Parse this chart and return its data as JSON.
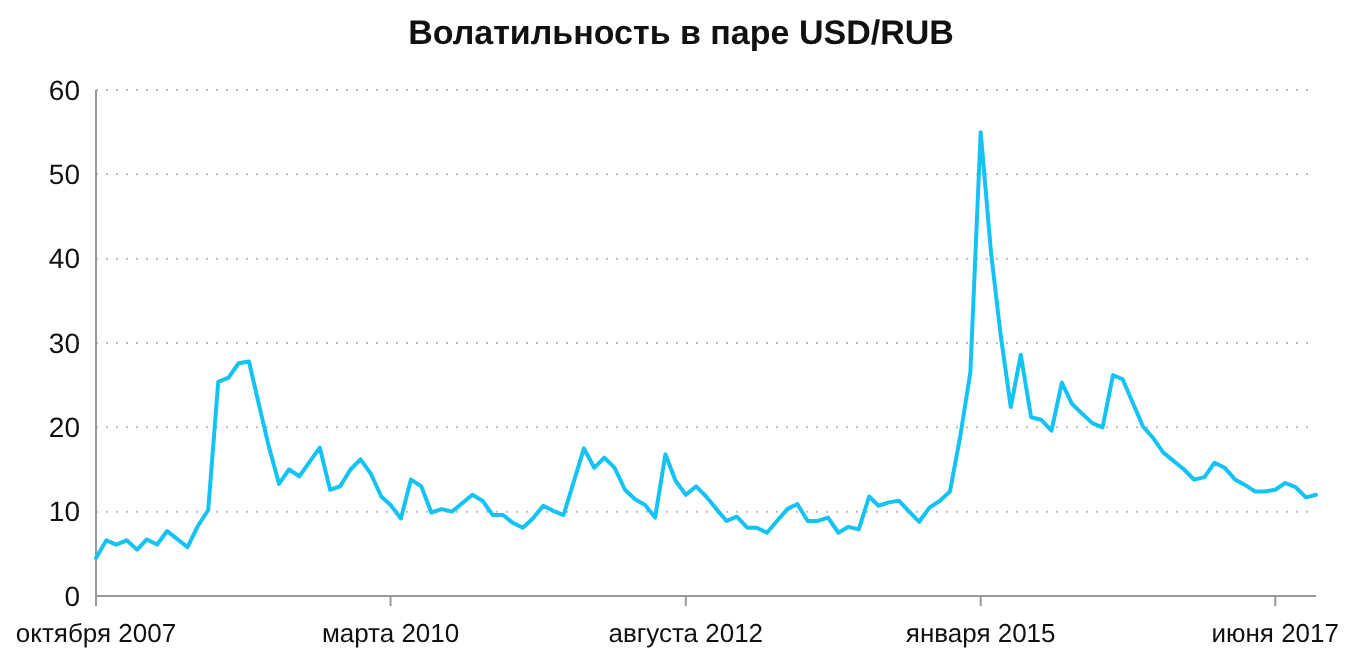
{
  "chart_data": {
    "type": "line",
    "title": "Волатильность в паре USD/RUB",
    "x": [
      "2007-10",
      "2007-11",
      "2007-12",
      "2008-01",
      "2008-02",
      "2008-03",
      "2008-04",
      "2008-05",
      "2008-07",
      "2008-08",
      "2008-09",
      "2008-10",
      "2008-11",
      "2008-12",
      "2009-01",
      "2009-02",
      "2009-03",
      "2009-04",
      "2009-05",
      "2009-06",
      "2009-08",
      "2009-09",
      "2009-10",
      "2009-11",
      "2009-12",
      "2010-01",
      "2010-02",
      "2010-03",
      "2010-04",
      "2010-05",
      "2010-06",
      "2010-07",
      "2010-08",
      "2010-09",
      "2010-11",
      "2010-12",
      "2011-01",
      "2011-02",
      "2011-03",
      "2011-04",
      "2011-05",
      "2011-06",
      "2011-07",
      "2011-08",
      "2011-10",
      "2011-11",
      "2011-12",
      "2012-01",
      "2012-02",
      "2012-03",
      "2012-04",
      "2012-05",
      "2012-06",
      "2012-07",
      "2012-08",
      "2012-09",
      "2012-10",
      "2012-11",
      "2012-12",
      "2013-01",
      "2013-02",
      "2013-03",
      "2013-04",
      "2013-05",
      "2013-06",
      "2013-07",
      "2013-08",
      "2013-09",
      "2013-10",
      "2013-11",
      "2013-12",
      "2014-01",
      "2014-02",
      "2014-03",
      "2014-04",
      "2014-05",
      "2014-06",
      "2014-07",
      "2014-08",
      "2014-09",
      "2014-10",
      "2014-11",
      "2014-12",
      "2015-01",
      "2015-02",
      "2015-03",
      "2015-04",
      "2015-05",
      "2015-06",
      "2015-07",
      "2015-08",
      "2015-09",
      "2015-10",
      "2015-11",
      "2015-12",
      "2016-01",
      "2016-02",
      "2016-03",
      "2016-05",
      "2016-06",
      "2016-07",
      "2016-09",
      "2016-10",
      "2016-11",
      "2016-12",
      "2017-01",
      "2017-02",
      "2017-03",
      "2017-04",
      "2017-05",
      "2017-06",
      "2017-07",
      "2017-08",
      "2017-09",
      "2017-10"
    ],
    "series": [
      {
        "color": "#12c3f4",
        "values": [
          4.5,
          6.6,
          6.1,
          6.6,
          5.5,
          6.7,
          6.1,
          7.7,
          5.8,
          8.3,
          10.2,
          25.4,
          25.9,
          27.6,
          27.8,
          22.5,
          17.8,
          13.3,
          15,
          14.2,
          17.6,
          12.6,
          13,
          15,
          16.2,
          14.5,
          11.8,
          10.8,
          9.2,
          13.8,
          13,
          9.9,
          10.3,
          10,
          12,
          11.3,
          9.6,
          9.6,
          8.7,
          8.1,
          9.2,
          10.7,
          10.1,
          9.6,
          17.5,
          15.2,
          16.4,
          15.2,
          12.6,
          11.5,
          10.8,
          9.3,
          16.8,
          13.7,
          12,
          13,
          11.8,
          10.3,
          8.9,
          9.4,
          8.1,
          8.1,
          7.5,
          8.9,
          10.3,
          10.9,
          8.9,
          8.9,
          9.3,
          7.5,
          8.2,
          7.9,
          11.8,
          10.7,
          11.1,
          11.3,
          10,
          8.8,
          10.5,
          11.3,
          12.4,
          19,
          26.5,
          55,
          40.7,
          31.2,
          22.4,
          28.6,
          21.2,
          20.9,
          19.6,
          25.3,
          22.8,
          21.6,
          20.5,
          20,
          26.2,
          25.7,
          20.1,
          18.7,
          17,
          15,
          13.8,
          14.1,
          15.8,
          15.2,
          13.8,
          13.2,
          12.4,
          12.4,
          12.6,
          13.4,
          12.9,
          11.7,
          12
        ]
      }
    ],
    "xlim": [
      "2007-10",
      "2017-10"
    ],
    "xticks": [
      {
        "value": "2007-10",
        "label": "октября 2007"
      },
      {
        "value": "2010-03",
        "label": "марта 2010"
      },
      {
        "value": "2012-08",
        "label": "августа 2012"
      },
      {
        "value": "2015-01",
        "label": "января 2015"
      },
      {
        "value": "2017-06",
        "label": "июня 2017"
      }
    ],
    "ylim": [
      0,
      60
    ],
    "yticks": [
      0,
      10,
      20,
      30,
      40,
      50,
      60
    ],
    "grid": "y",
    "marker": "none",
    "line_style": "solid"
  }
}
